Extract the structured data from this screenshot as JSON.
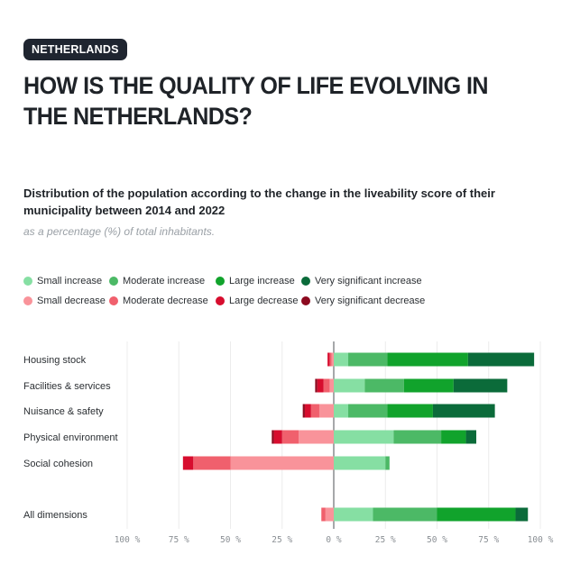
{
  "badge": "NETHERLANDS",
  "title": "HOW IS THE QUALITY OF LIFE EVOLVING IN THE NETHERLANDS?",
  "subtitle": "Distribution of the population according to the change in the liveability score of their municipality between 2014 and 2022",
  "note": "as a percentage (%) of total inhabitants.",
  "colors": {
    "small_increase": "#86dfa3",
    "moderate_increase": "#4cb966",
    "large_increase": "#11a32c",
    "very_significant_increase": "#0b6b3a",
    "small_decrease": "#f9939a",
    "moderate_decrease": "#f0606d",
    "large_decrease": "#d70d2e",
    "very_significant_decrease": "#8c0a1f"
  },
  "legend": [
    {
      "label": "Small increase",
      "color": "#86dfa3"
    },
    {
      "label": "Moderate increase",
      "color": "#4cb966"
    },
    {
      "label": "Large increase",
      "color": "#11a32c"
    },
    {
      "label": "Very significant increase",
      "color": "#0b6b3a"
    },
    {
      "label": "Small decrease",
      "color": "#f9939a"
    },
    {
      "label": "Moderate decrease",
      "color": "#f0606d"
    },
    {
      "label": "Large decrease",
      "color": "#d70d2e"
    },
    {
      "label": "Very significant decrease",
      "color": "#8c0a1f"
    }
  ],
  "chart_data": {
    "type": "bar",
    "orientation": "horizontal",
    "stacked": "diverging",
    "xlim": [
      -100,
      100
    ],
    "x_ticks": [
      -100,
      -75,
      -50,
      -25,
      0,
      25,
      50,
      75,
      100
    ],
    "x_tick_labels": [
      "100 %",
      "75 %",
      "50 %",
      "25 %",
      "0 %",
      "25 %",
      "50 %",
      "75 %",
      "100 %"
    ],
    "grid": true,
    "legend_position": "top",
    "categories": [
      "Housing stock",
      "Facilities & services",
      "Nuisance & safety",
      "Physical environment",
      "Social cohesion",
      "All dimensions"
    ],
    "increase_series": [
      {
        "name": "Small increase",
        "color": "#86dfa3",
        "values": [
          7,
          15,
          7,
          29,
          25,
          19
        ]
      },
      {
        "name": "Moderate increase",
        "color": "#4cb966",
        "values": [
          19,
          19,
          19,
          23,
          2,
          31
        ]
      },
      {
        "name": "Large increase",
        "color": "#11a32c",
        "values": [
          39,
          24,
          22,
          12,
          0,
          38
        ]
      },
      {
        "name": "Very significant increase",
        "color": "#0b6b3a",
        "values": [
          32,
          26,
          30,
          5,
          0,
          6
        ]
      }
    ],
    "decrease_series": [
      {
        "name": "Small decrease",
        "color": "#f9939a",
        "values": [
          1,
          2,
          7,
          17,
          50,
          4
        ]
      },
      {
        "name": "Moderate decrease",
        "color": "#f0606d",
        "values": [
          1,
          3,
          4,
          8,
          18,
          2
        ]
      },
      {
        "name": "Large decrease",
        "color": "#d70d2e",
        "values": [
          1,
          3,
          3,
          4,
          5,
          0
        ]
      },
      {
        "name": "Very significant decrease",
        "color": "#8c0a1f",
        "values": [
          0,
          1,
          1,
          1,
          0,
          0
        ]
      }
    ]
  }
}
